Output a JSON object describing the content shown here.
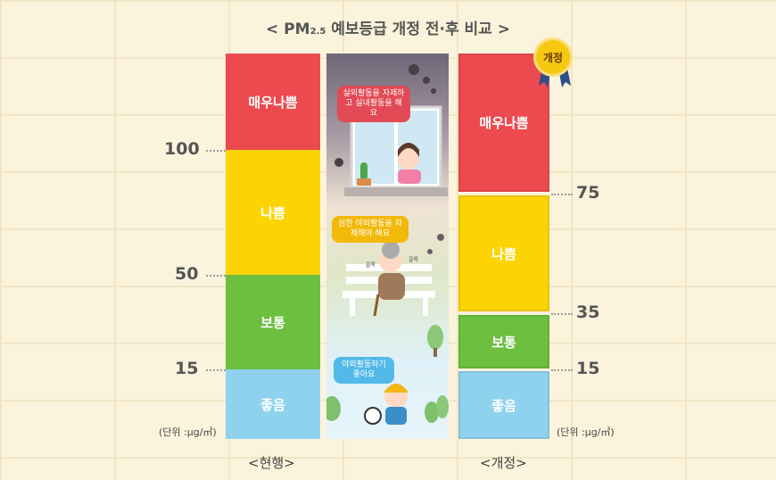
{
  "title": {
    "prefix": "< PM",
    "subscript": "2.5",
    "suffix": " 예보등급 개정 전·후 비교 >"
  },
  "current": {
    "caption": "<현행>",
    "unit": "(단위 :µg/㎥)",
    "levels": [
      {
        "label": "매우나쁨",
        "color": "#ec4a4f"
      },
      {
        "label": "나쁨",
        "color": "#fcd405"
      },
      {
        "label": "보통",
        "color": "#6cbf3f"
      },
      {
        "label": "좋음",
        "color": "#8fd2ee"
      }
    ],
    "ticks": [
      "100",
      "50",
      "15"
    ]
  },
  "revised": {
    "caption": "<개정>",
    "unit": "(단위 :µg/㎥)",
    "badge": "개정",
    "levels": [
      {
        "label": "매우나쁨",
        "color": "#ec4a4f"
      },
      {
        "label": "나쁨",
        "color": "#fcd405"
      },
      {
        "label": "보통",
        "color": "#6cbf3f"
      },
      {
        "label": "좋음",
        "color": "#8fd2ee"
      }
    ],
    "ticks": [
      "75",
      "35",
      "15"
    ]
  },
  "illustration": {
    "bubble_top": "실외활동을 자제하고 실내활동을 해요",
    "bubble_middle": "심한 야외활동을 자제해야 해요",
    "bubble_bottom": "야외활동하기 좋아요",
    "dust_text": "콜록"
  }
}
